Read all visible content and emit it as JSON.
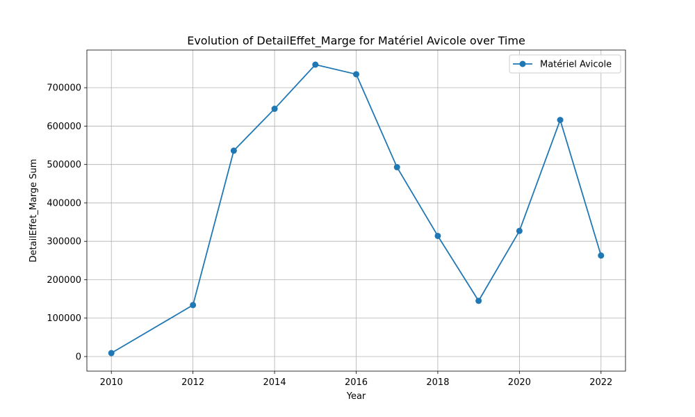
{
  "chart_data": {
    "type": "line",
    "title": "Evolution of DetailEffet_Marge for Matériel Avicole over Time",
    "xlabel": "Year",
    "ylabel": "DetailEffet_Marge Sum",
    "xlim": [
      2009.4,
      2022.6
    ],
    "ylim": [
      -38000,
      798000
    ],
    "x_ticks": [
      2010,
      2012,
      2014,
      2016,
      2018,
      2020,
      2022
    ],
    "y_ticks": [
      0,
      100000,
      200000,
      300000,
      400000,
      500000,
      600000,
      700000
    ],
    "grid": true,
    "legend_position": "top-right",
    "series": [
      {
        "name": "Matériel Avicole",
        "color": "#1f77b4",
        "marker": "circle",
        "points": [
          {
            "x": 2010,
            "y": 9000
          },
          {
            "x": 2012,
            "y": 134000
          },
          {
            "x": 2013,
            "y": 536000
          },
          {
            "x": 2014,
            "y": 645000
          },
          {
            "x": 2015,
            "y": 760000
          },
          {
            "x": 2016,
            "y": 735000
          },
          {
            "x": 2017,
            "y": 493000
          },
          {
            "x": 2018,
            "y": 314000
          },
          {
            "x": 2019,
            "y": 145000
          },
          {
            "x": 2020,
            "y": 327000
          },
          {
            "x": 2021,
            "y": 616000
          },
          {
            "x": 2022,
            "y": 263000
          }
        ]
      }
    ]
  }
}
